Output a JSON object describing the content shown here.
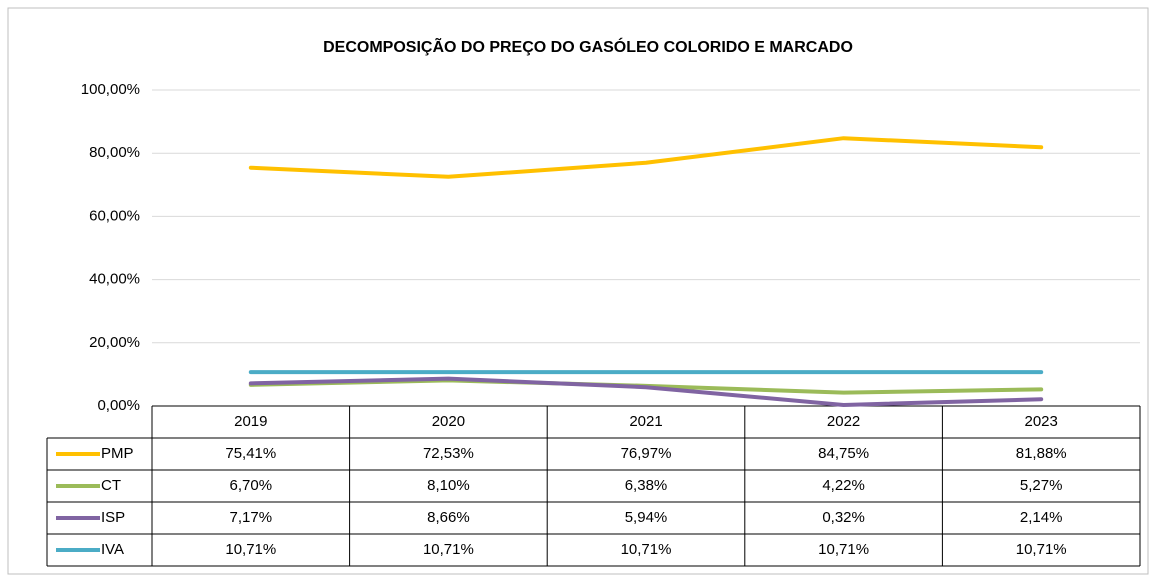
{
  "chart_data": {
    "type": "line",
    "title": "DECOMPOSIÇÃO DO PREÇO DO GASÓLEO COLORIDO E MARCADO",
    "categories": [
      "2019",
      "2020",
      "2021",
      "2022",
      "2023"
    ],
    "series": [
      {
        "name": "PMP",
        "color": "#ffc000",
        "values": [
          75.41,
          72.53,
          76.97,
          84.75,
          81.88
        ],
        "value_labels": [
          "75,41%",
          "72,53%",
          "76,97%",
          "84,75%",
          "81,88%"
        ]
      },
      {
        "name": "CT",
        "color": "#9bbb59",
        "values": [
          6.7,
          8.1,
          6.38,
          4.22,
          5.27
        ],
        "value_labels": [
          "6,70%",
          "8,10%",
          "6,38%",
          "4,22%",
          "5,27%"
        ]
      },
      {
        "name": "ISP",
        "color": "#8064a2",
        "values": [
          7.17,
          8.66,
          5.94,
          0.32,
          2.14
        ],
        "value_labels": [
          "7,17%",
          "8,66%",
          "5,94%",
          "0,32%",
          "2,14%"
        ]
      },
      {
        "name": "IVA",
        "color": "#4bacc6",
        "values": [
          10.71,
          10.71,
          10.71,
          10.71,
          10.71
        ],
        "value_labels": [
          "10,71%",
          "10,71%",
          "10,71%",
          "10,71%",
          "10,71%"
        ]
      }
    ],
    "ylim": [
      0,
      100
    ],
    "yticks": [
      {
        "value": 0,
        "label": "0,00%"
      },
      {
        "value": 20,
        "label": "20,00%"
      },
      {
        "value": 40,
        "label": "40,00%"
      },
      {
        "value": 60,
        "label": "60,00%"
      },
      {
        "value": 80,
        "label": "80,00%"
      },
      {
        "value": 100,
        "label": "100,00%"
      }
    ],
    "grid": true
  }
}
